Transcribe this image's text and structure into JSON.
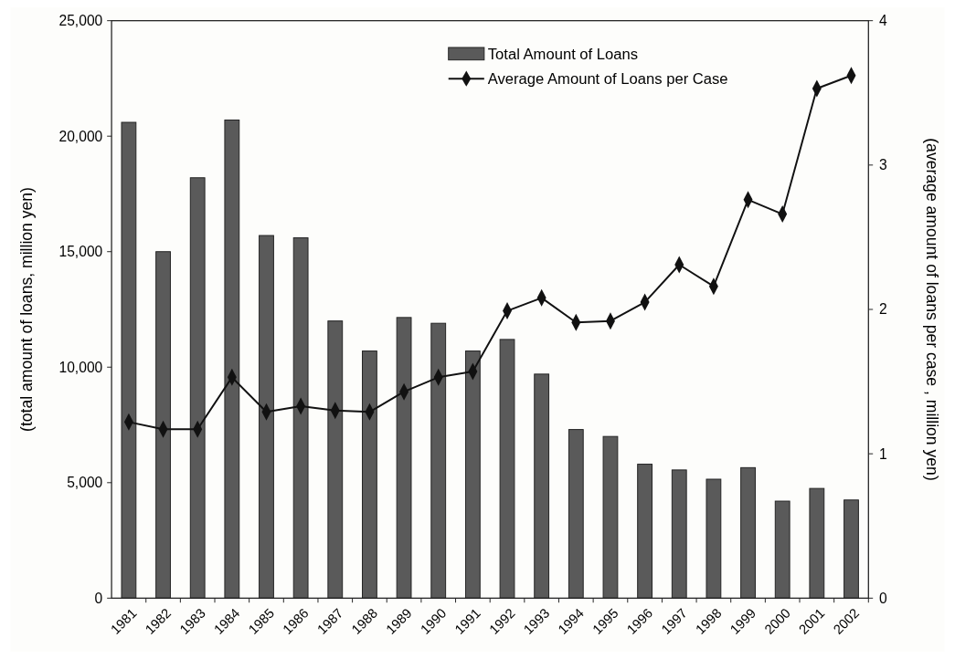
{
  "chart_data": {
    "type": "bar",
    "ylabel": "(total amount of loans, million yen)",
    "y2label": "(average amount of loans per case , million yen)",
    "categories": [
      "1981",
      "1982",
      "1983",
      "1984",
      "1985",
      "1986",
      "1987",
      "1988",
      "1989",
      "1990",
      "1991",
      "1992",
      "1993",
      "1994",
      "1995",
      "1996",
      "1997",
      "1998",
      "1999",
      "2000",
      "2001",
      "2002"
    ],
    "series": [
      {
        "name": "Total Amount of Loans",
        "color": "#5a5a5a",
        "values": [
          20600,
          15000,
          18200,
          20700,
          15700,
          15600,
          12000,
          10700,
          12150,
          11900,
          10700,
          11200,
          9700,
          7300,
          7000,
          5800,
          5550,
          5150,
          5650,
          4200,
          4750,
          4250
        ]
      },
      {
        "name": "Average Amount of Loans per Case",
        "type": "line",
        "axis": "y2",
        "color": "#111111",
        "marker": "diamond",
        "values": [
          1.22,
          1.17,
          1.17,
          1.53,
          1.29,
          1.33,
          1.3,
          1.29,
          1.43,
          1.53,
          1.57,
          1.99,
          2.08,
          1.91,
          1.92,
          2.05,
          2.31,
          2.16,
          2.76,
          2.66,
          3.53,
          3.62
        ]
      }
    ],
    "ylim": [
      0,
      25000
    ],
    "yticks": [
      {
        "value": 0,
        "label": "0"
      },
      {
        "value": 5000,
        "label": "5,000"
      },
      {
        "value": 10000,
        "label": "10,000"
      },
      {
        "value": 15000,
        "label": "15,000"
      },
      {
        "value": 20000,
        "label": "20,000"
      },
      {
        "value": 25000,
        "label": "25,000"
      }
    ],
    "y2lim": [
      0,
      4
    ],
    "y2ticks": [
      0,
      1,
      2,
      3,
      4
    ],
    "legend": "top",
    "grid": false
  }
}
